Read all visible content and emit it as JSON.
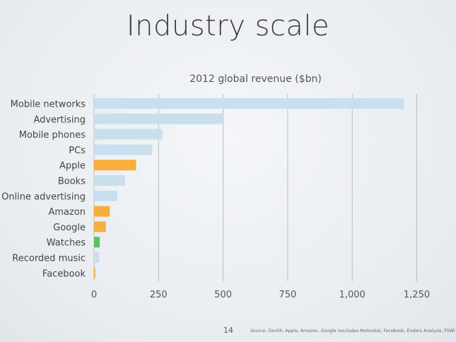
{
  "slide": {
    "title": "Industry scale",
    "page_number": "14",
    "source": "Source: Zenith, Apple, Amazon, Google (excludes Motorola), Facebook, Enders Analysis, FSWI"
  },
  "chart_data": {
    "type": "bar",
    "orientation": "horizontal",
    "title": "2012 global revenue ($bn)",
    "xlabel": "",
    "ylabel": "",
    "xlim": [
      0,
      1250
    ],
    "grid": true,
    "ticks": [
      {
        "value": 0,
        "label": "0"
      },
      {
        "value": 250,
        "label": "250"
      },
      {
        "value": 500,
        "label": "500"
      },
      {
        "value": 750,
        "label": "750"
      },
      {
        "value": 1000,
        "label": "1,000"
      },
      {
        "value": 1250,
        "label": "1,250"
      }
    ],
    "categories": [
      "Mobile networks",
      "Advertising",
      "Mobile phones",
      "PCs",
      "Apple",
      "Books",
      "Online advertising",
      "Amazon",
      "Google",
      "Watches",
      "Recorded music",
      "Facebook"
    ],
    "values": [
      1200,
      500,
      265,
      225,
      163,
      120,
      90,
      61,
      46,
      22,
      20,
      5
    ],
    "colors": [
      "#c9dfee",
      "#c9dfee",
      "#c9dfee",
      "#c9dfee",
      "#f7ae3c",
      "#c9dfee",
      "#c9dfee",
      "#f7ae3c",
      "#f7ae3c",
      "#5cbf64",
      "#c9dfee",
      "#f7ae3c"
    ],
    "gridline_color": "#b8bcc2"
  }
}
